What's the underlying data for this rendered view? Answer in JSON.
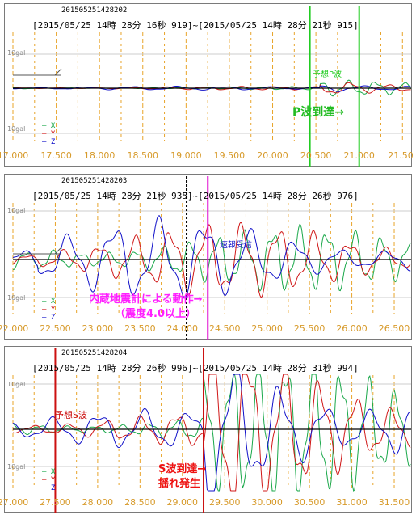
{
  "colors": {
    "x_channel": "#1aa84a",
    "y_channel": "#d01818",
    "z_channel": "#1010c8",
    "grid": "#e8a42a",
    "p_marker": "#22cc22",
    "alert_marker": "#e010d0",
    "s_marker": "#cc1010",
    "annotation_green": "#22bb22",
    "annotation_magenta": "#ff20ff",
    "annotation_red": "#ee1111"
  },
  "chart_data": [
    {
      "type": "line",
      "id": "201505251428202",
      "range_text": "[2015/05/25 14時 28分 16秒 919]~[2015/05/25 14時 28分 21秒 915]",
      "ylabel_top": "10gal",
      "ylabel_bottom": "10gal",
      "series": [
        {
          "name": "X"
        },
        {
          "name": "Y"
        },
        {
          "name": "Z"
        }
      ],
      "xlim": [
        17.0,
        21.6
      ],
      "x_ticks": [
        "17.000",
        "17.500",
        "18.000",
        "18.500",
        "19.000",
        "19.500",
        "20.000",
        "20.500",
        "21.000",
        "21.50"
      ],
      "markers": [
        {
          "x": 20.43,
          "label": "予想P波",
          "color": "#22cc22"
        },
        {
          "x": 21.0,
          "label": "",
          "color": "#22cc22"
        }
      ],
      "annotation": "P波到達→"
    },
    {
      "type": "line",
      "id": "201505251428203",
      "range_text": "[2015/05/25 14時 28分 21秒 935]~[2015/05/25 14時 28分 26秒 976]",
      "ylabel_top": "10gal",
      "ylabel_bottom": "10gal",
      "series": [
        {
          "name": "X"
        },
        {
          "name": "Y"
        },
        {
          "name": "Z"
        }
      ],
      "xlim": [
        22.0,
        26.7
      ],
      "x_ticks": [
        "22.000",
        "22.500",
        "23.000",
        "23.500",
        "24.000",
        "24.500",
        "25.000",
        "25.500",
        "26.000",
        "26.500"
      ],
      "markers": [
        {
          "x": 24.05,
          "label": "",
          "color": "#000000"
        },
        {
          "x": 24.3,
          "label": "速報受信",
          "color": "#e010d0"
        }
      ],
      "annotation_line1": "内蔵地震計による動作→",
      "annotation_line2": "（震度4.0以上）"
    },
    {
      "type": "line",
      "id": "201505251428204",
      "range_text": "[2015/05/25 14時 28分 26秒 996]~[2015/05/25 14時 28分 31秒 994]",
      "ylabel_top": "10gal",
      "ylabel_bottom": "10gal",
      "series": [
        {
          "name": "X"
        },
        {
          "name": "Y"
        },
        {
          "name": "Z"
        }
      ],
      "xlim": [
        27.0,
        31.7
      ],
      "x_ticks": [
        "27.000",
        "27.500",
        "28.000",
        "28.500",
        "29.000",
        "29.500",
        "30.000",
        "30.500",
        "31.000",
        "31.500"
      ],
      "markers": [
        {
          "x": 27.5,
          "label": "予想S波",
          "color": "#cc1010"
        },
        {
          "x": 29.25,
          "label": "",
          "color": "#cc1010"
        }
      ],
      "annotation_line1": "S波到達→",
      "annotation_line2": "揺れ発生"
    }
  ]
}
